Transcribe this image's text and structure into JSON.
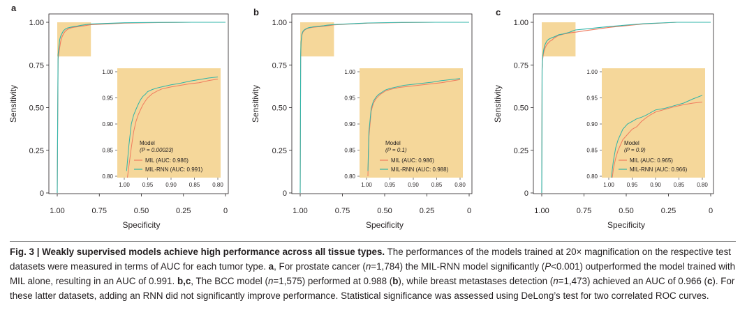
{
  "colors": {
    "mil": "#f07b5e",
    "mil_rnn": "#2fb4a8",
    "zoom_fill": "#f5d79a",
    "axis": "#231f20"
  },
  "figure": {
    "caption": {
      "label": "Fig. 3 | ",
      "title": "Weakly supervised models achieve high performance across all tissue types.",
      "segments": [
        {
          "text": " The performances of the models trained at 20× magnification on the respective test datasets were measured in terms of AUC for each tumor type. ",
          "style": "plain"
        },
        {
          "text": "a",
          "style": "bold"
        },
        {
          "text": ", For prostate cancer (",
          "style": "plain"
        },
        {
          "text": "n",
          "style": "italic"
        },
        {
          "text": "=1,784) the MIL-RNN model significantly (",
          "style": "plain"
        },
        {
          "text": "P",
          "style": "italic"
        },
        {
          "text": "<0.001) outperformed the model trained with MIL alone, resulting in an AUC of 0.991. ",
          "style": "plain"
        },
        {
          "text": "b,c",
          "style": "bold"
        },
        {
          "text": ", The BCC model (",
          "style": "plain"
        },
        {
          "text": "n",
          "style": "italic"
        },
        {
          "text": "=1,575) performed at 0.988 (",
          "style": "plain"
        },
        {
          "text": "b",
          "style": "bold"
        },
        {
          "text": "), while breast metastases detection (",
          "style": "plain"
        },
        {
          "text": "n",
          "style": "italic"
        },
        {
          "text": "=1,473) achieved an AUC of 0.966 (",
          "style": "plain"
        },
        {
          "text": "c",
          "style": "bold"
        },
        {
          "text": "). For these latter datasets, adding an RNN did not significantly improve performance. Statistical significance was assessed using DeLong’s test for two correlated ROC curves.",
          "style": "plain"
        }
      ]
    }
  },
  "chart_data": [
    {
      "panel": "a",
      "type": "line",
      "xlabel": "Specificity",
      "ylabel": "Sensitivity",
      "xlim": [
        1.0,
        0.0
      ],
      "ylim": [
        0.0,
        1.0
      ],
      "x_ticks": [
        "1.00",
        "0.75",
        "0.50",
        "0.25",
        "0"
      ],
      "y_ticks": [
        "0",
        "0.25",
        "0.50",
        "0.75",
        "1.00"
      ],
      "zoom_region": {
        "x": [
          1.0,
          0.8
        ],
        "y": [
          0.8,
          1.0
        ]
      },
      "inset": {
        "xlim": [
          1.0,
          0.8
        ],
        "ylim": [
          0.8,
          1.0
        ],
        "x_ticks": [
          "1.00",
          "0.95",
          "0.90",
          "0.85",
          "0.80"
        ],
        "y_ticks": [
          "0.80",
          "0.85",
          "0.90",
          "0.95",
          "1.00"
        ]
      },
      "legend": {
        "title": "Model",
        "p_label": "(P = 0.00023)",
        "position": "inset-bottom-left"
      },
      "series": [
        {
          "name": "MIL (AUC: 0.986)",
          "color": "#f07b5e",
          "x": [
            1.0,
            0.995,
            0.99,
            0.985,
            0.98,
            0.975,
            0.97,
            0.965,
            0.96,
            0.955,
            0.95,
            0.94,
            0.93,
            0.92,
            0.91,
            0.9,
            0.88,
            0.86,
            0.84,
            0.82,
            0.8,
            0.6,
            0.4,
            0.2,
            0.0
          ],
          "y": [
            0.0,
            0.785,
            0.82,
            0.855,
            0.885,
            0.905,
            0.918,
            0.928,
            0.937,
            0.944,
            0.95,
            0.958,
            0.963,
            0.967,
            0.969,
            0.971,
            0.974,
            0.977,
            0.979,
            0.983,
            0.986,
            0.995,
            0.998,
            1.0,
            1.0
          ]
        },
        {
          "name": "MIL-RNN (AUC: 0.991)",
          "color": "#2fb4a8",
          "x": [
            1.0,
            0.995,
            0.99,
            0.985,
            0.98,
            0.975,
            0.97,
            0.965,
            0.96,
            0.955,
            0.95,
            0.94,
            0.93,
            0.92,
            0.91,
            0.9,
            0.88,
            0.86,
            0.84,
            0.82,
            0.8,
            0.6,
            0.4,
            0.2,
            0.0
          ],
          "y": [
            0.0,
            0.81,
            0.86,
            0.9,
            0.917,
            0.928,
            0.938,
            0.947,
            0.953,
            0.957,
            0.962,
            0.966,
            0.969,
            0.971,
            0.973,
            0.975,
            0.978,
            0.982,
            0.985,
            0.988,
            0.99,
            0.997,
            0.999,
            1.0,
            1.0
          ]
        }
      ]
    },
    {
      "panel": "b",
      "type": "line",
      "xlabel": "Specificity",
      "ylabel": "Sensitivity",
      "xlim": [
        1.0,
        0.0
      ],
      "ylim": [
        0.0,
        1.0
      ],
      "x_ticks": [
        "1.00",
        "0.75",
        "0.50",
        "0.25",
        "0"
      ],
      "y_ticks": [
        "0",
        "0.25",
        "0.50",
        "0.75",
        "1.00"
      ],
      "zoom_region": {
        "x": [
          1.0,
          0.8
        ],
        "y": [
          0.8,
          1.0
        ]
      },
      "inset": {
        "xlim": [
          1.0,
          0.8
        ],
        "ylim": [
          0.8,
          1.0
        ],
        "x_ticks": [
          "1.00",
          "0.95",
          "0.90",
          "0.85",
          "0.80"
        ],
        "y_ticks": [
          "0.80",
          "0.85",
          "0.90",
          "0.95",
          "1.00"
        ]
      },
      "legend": {
        "title": "Model",
        "p_label": "(P = 0.1)",
        "position": "inset-bottom-center"
      },
      "series": [
        {
          "name": "MIL (AUC: 0.986)",
          "color": "#f07b5e",
          "x": [
            1.0,
            0.997,
            0.995,
            0.992,
            0.99,
            0.985,
            0.98,
            0.975,
            0.97,
            0.965,
            0.96,
            0.95,
            0.94,
            0.93,
            0.92,
            0.9,
            0.88,
            0.86,
            0.84,
            0.82,
            0.8,
            0.6,
            0.4,
            0.2,
            0.0
          ],
          "y": [
            0.0,
            0.8,
            0.875,
            0.905,
            0.925,
            0.94,
            0.948,
            0.953,
            0.957,
            0.96,
            0.963,
            0.966,
            0.968,
            0.97,
            0.971,
            0.973,
            0.975,
            0.977,
            0.979,
            0.982,
            0.985,
            0.995,
            0.998,
            1.0,
            1.0
          ]
        },
        {
          "name": "MIL-RNN (AUC: 0.988)",
          "color": "#2fb4a8",
          "x": [
            1.0,
            0.997,
            0.995,
            0.992,
            0.99,
            0.985,
            0.98,
            0.975,
            0.97,
            0.965,
            0.96,
            0.95,
            0.94,
            0.93,
            0.92,
            0.9,
            0.88,
            0.86,
            0.84,
            0.82,
            0.8,
            0.6,
            0.4,
            0.2,
            0.0
          ],
          "y": [
            0.0,
            0.81,
            0.885,
            0.912,
            0.93,
            0.944,
            0.951,
            0.956,
            0.959,
            0.962,
            0.965,
            0.968,
            0.97,
            0.972,
            0.974,
            0.976,
            0.978,
            0.98,
            0.983,
            0.985,
            0.987,
            0.996,
            0.999,
            1.0,
            1.0
          ]
        }
      ]
    },
    {
      "panel": "c",
      "type": "line",
      "xlabel": "Specificity",
      "ylabel": "Sensitivity",
      "xlim": [
        1.0,
        0.0
      ],
      "ylim": [
        0.0,
        1.0
      ],
      "x_ticks": [
        "1.00",
        "0.75",
        "0.50",
        "0.25",
        "0"
      ],
      "y_ticks": [
        "0",
        "0.25",
        "0.50",
        "0.75",
        "1.00"
      ],
      "zoom_region": {
        "x": [
          1.0,
          0.8
        ],
        "y": [
          0.8,
          1.0
        ]
      },
      "inset": {
        "xlim": [
          1.0,
          0.8
        ],
        "ylim": [
          0.8,
          1.0
        ],
        "x_ticks": [
          "1.00",
          "0.95",
          "0.90",
          "0.85",
          "0.80"
        ],
        "y_ticks": [
          "0.80",
          "0.85",
          "0.90",
          "0.95",
          "1.00"
        ]
      },
      "legend": {
        "title": "Model",
        "p_label": "(P = 0.9)",
        "position": "inset-bottom-center"
      },
      "series": [
        {
          "name": "MIL (AUC: 0.965)",
          "color": "#f07b5e",
          "x": [
            1.0,
            0.998,
            0.995,
            0.99,
            0.985,
            0.98,
            0.975,
            0.97,
            0.96,
            0.95,
            0.94,
            0.93,
            0.92,
            0.91,
            0.9,
            0.88,
            0.86,
            0.84,
            0.82,
            0.8,
            0.75,
            0.6,
            0.4,
            0.2,
            0.0
          ],
          "y": [
            0.0,
            0.72,
            0.78,
            0.815,
            0.835,
            0.85,
            0.86,
            0.87,
            0.88,
            0.89,
            0.895,
            0.905,
            0.912,
            0.918,
            0.923,
            0.928,
            0.933,
            0.937,
            0.94,
            0.942,
            0.95,
            0.97,
            0.99,
            1.0,
            1.0
          ]
        },
        {
          "name": "MIL-RNN (AUC: 0.966)",
          "color": "#2fb4a8",
          "x": [
            1.0,
            0.998,
            0.995,
            0.99,
            0.985,
            0.98,
            0.975,
            0.97,
            0.96,
            0.95,
            0.94,
            0.93,
            0.92,
            0.91,
            0.9,
            0.88,
            0.86,
            0.84,
            0.82,
            0.8,
            0.75,
            0.6,
            0.4,
            0.2,
            0.0
          ],
          "y": [
            0.0,
            0.73,
            0.795,
            0.83,
            0.855,
            0.87,
            0.88,
            0.89,
            0.9,
            0.905,
            0.91,
            0.913,
            0.917,
            0.922,
            0.927,
            0.93,
            0.935,
            0.94,
            0.948,
            0.955,
            0.96,
            0.975,
            0.992,
            1.0,
            1.0
          ]
        }
      ]
    }
  ]
}
